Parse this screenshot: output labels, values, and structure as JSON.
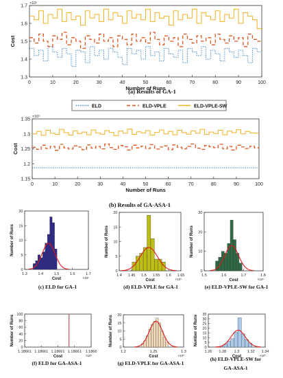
{
  "legend": {
    "entries": [
      {
        "name": "ELD",
        "color": "#1f78c8",
        "dash": "dot"
      },
      {
        "name": "ELD-VPLE",
        "color": "#e0541c",
        "dash": "dash"
      },
      {
        "name": "ELD-VPLE-SW",
        "color": "#f2b01e",
        "dash": "solid"
      }
    ]
  },
  "chart_data": [
    {
      "id": "a",
      "type": "line",
      "caption": "(a) Results of GA-1",
      "xlabel": "Number of Runs",
      "ylabel": "Cost",
      "exponent": "×10⁵",
      "xlim": [
        0,
        100
      ],
      "ylim": [
        1.3,
        1.7
      ],
      "xticks": [
        0,
        10,
        20,
        30,
        40,
        50,
        60,
        70,
        80,
        90,
        100
      ],
      "yticks": [
        1.3,
        1.4,
        1.5,
        1.6,
        1.7
      ],
      "ytick_labels": [
        "1.3",
        "1.4",
        "1.5",
        "1.6",
        "1.7"
      ],
      "x": [
        1,
        3,
        5,
        7,
        9,
        11,
        13,
        15,
        17,
        19,
        21,
        23,
        25,
        27,
        29,
        31,
        33,
        35,
        37,
        39,
        41,
        43,
        45,
        47,
        49,
        51,
        53,
        55,
        57,
        59,
        61,
        63,
        65,
        67,
        69,
        71,
        73,
        75,
        77,
        79,
        81,
        83,
        85,
        87,
        89,
        91,
        93,
        95,
        97,
        99
      ],
      "series": [
        {
          "name": "ELD",
          "values": [
            1.46,
            1.42,
            1.45,
            1.39,
            1.47,
            1.44,
            1.41,
            1.46,
            1.43,
            1.36,
            1.45,
            1.44,
            1.38,
            1.47,
            1.42,
            1.45,
            1.4,
            1.46,
            1.44,
            1.41,
            1.37,
            1.46,
            1.43,
            1.45,
            1.4,
            1.47,
            1.42,
            1.44,
            1.39,
            1.46,
            1.43,
            1.41,
            1.45,
            1.38,
            1.46,
            1.44,
            1.42,
            1.47,
            1.4,
            1.45,
            1.43,
            1.39,
            1.46,
            1.44,
            1.41,
            1.45,
            1.42,
            1.38,
            1.46,
            1.44
          ]
        },
        {
          "name": "ELD-VPLE",
          "values": [
            1.52,
            1.49,
            1.54,
            1.5,
            1.47,
            1.53,
            1.51,
            1.55,
            1.48,
            1.52,
            1.5,
            1.46,
            1.53,
            1.51,
            1.49,
            1.54,
            1.5,
            1.52,
            1.47,
            1.53,
            1.51,
            1.48,
            1.54,
            1.5,
            1.52,
            1.49,
            1.55,
            1.51,
            1.48,
            1.53,
            1.5,
            1.52,
            1.47,
            1.54,
            1.51,
            1.49,
            1.53,
            1.5,
            1.52,
            1.48,
            1.54,
            1.51,
            1.49,
            1.53,
            1.5,
            1.52,
            1.47,
            1.54,
            1.51,
            1.5
          ]
        },
        {
          "name": "ELD-VPLE-SW",
          "values": [
            1.64,
            1.62,
            1.67,
            1.6,
            1.65,
            1.63,
            1.68,
            1.61,
            1.66,
            1.62,
            1.64,
            1.59,
            1.67,
            1.63,
            1.65,
            1.61,
            1.68,
            1.62,
            1.66,
            1.64,
            1.6,
            1.67,
            1.63,
            1.65,
            1.62,
            1.68,
            1.61,
            1.66,
            1.63,
            1.64,
            1.59,
            1.67,
            1.62,
            1.65,
            1.63,
            1.68,
            1.6,
            1.66,
            1.64,
            1.62,
            1.67,
            1.61,
            1.65,
            1.63,
            1.68,
            1.6,
            1.66,
            1.64,
            1.62,
            1.57
          ]
        }
      ]
    },
    {
      "id": "b",
      "type": "line",
      "caption": "(b) Results of GA-ASA-1",
      "xlabel": "Number of Runs",
      "ylabel": "Cost",
      "exponent": "×10⁵",
      "xlim": [
        0,
        100
      ],
      "ylim": [
        1.15,
        1.35
      ],
      "xticks": [
        0,
        10,
        20,
        30,
        40,
        50,
        60,
        70,
        80,
        90,
        100
      ],
      "yticks": [
        1.15,
        1.2,
        1.25,
        1.3,
        1.35
      ],
      "ytick_labels": [
        "1.15",
        "1.2",
        "1.25",
        "1.3",
        "1.35"
      ],
      "x": [
        1,
        3,
        5,
        7,
        9,
        11,
        13,
        15,
        17,
        19,
        21,
        23,
        25,
        27,
        29,
        31,
        33,
        35,
        37,
        39,
        41,
        43,
        45,
        47,
        49,
        51,
        53,
        55,
        57,
        59,
        61,
        63,
        65,
        67,
        69,
        71,
        73,
        75,
        77,
        79,
        81,
        83,
        85,
        87,
        89,
        91,
        93,
        95,
        97,
        99
      ],
      "series": [
        {
          "name": "ELD",
          "values": [
            1.1866,
            1.1866,
            1.1866,
            1.1866,
            1.1866,
            1.1866,
            1.1866,
            1.1866,
            1.1866,
            1.1866,
            1.1866,
            1.1866,
            1.1866,
            1.1866,
            1.1866,
            1.1866,
            1.1866,
            1.1866,
            1.1866,
            1.1866,
            1.1866,
            1.1866,
            1.1866,
            1.1866,
            1.1866,
            1.1866,
            1.1866,
            1.1866,
            1.1866,
            1.1866,
            1.1866,
            1.1866,
            1.1866,
            1.1866,
            1.1866,
            1.1866,
            1.1866,
            1.1866,
            1.1866,
            1.1866,
            1.1866,
            1.1866,
            1.1866,
            1.1866,
            1.1866,
            1.1866,
            1.1866,
            1.1866,
            1.1866,
            1.1866
          ]
        },
        {
          "name": "ELD-VPLE",
          "values": [
            1.255,
            1.248,
            1.262,
            1.251,
            1.258,
            1.245,
            1.265,
            1.253,
            1.249,
            1.26,
            1.256,
            1.247,
            1.263,
            1.252,
            1.258,
            1.25,
            1.266,
            1.254,
            1.248,
            1.261,
            1.257,
            1.246,
            1.262,
            1.253,
            1.259,
            1.251,
            1.264,
            1.249,
            1.256,
            1.26,
            1.247,
            1.263,
            1.255,
            1.25,
            1.258,
            1.266,
            1.252,
            1.248,
            1.261,
            1.257,
            1.254,
            1.265,
            1.25,
            1.258,
            1.246,
            1.262,
            1.256,
            1.251,
            1.259,
            1.253
          ]
        },
        {
          "name": "ELD-VPLE-SW",
          "values": [
            1.3,
            1.308,
            1.295,
            1.312,
            1.302,
            1.298,
            1.315,
            1.304,
            1.296,
            1.31,
            1.301,
            1.306,
            1.297,
            1.313,
            1.303,
            1.299,
            1.311,
            1.305,
            1.294,
            1.309,
            1.302,
            1.316,
            1.298,
            1.307,
            1.303,
            1.311,
            1.296,
            1.305,
            1.313,
            1.3,
            1.308,
            1.297,
            1.312,
            1.304,
            1.299,
            1.31,
            1.302,
            1.315,
            1.298,
            1.306,
            1.301,
            1.312,
            1.297,
            1.309,
            1.304,
            1.314,
            1.3,
            1.308,
            1.303,
            1.302
          ]
        }
      ]
    },
    {
      "id": "c",
      "type": "histogram",
      "caption": "(c) ELD for GA-1",
      "xlabel": "Cost",
      "ylabel": "Number of Runs",
      "exponent": "×10⁵",
      "bar_color": "#2e2a8a",
      "xlim": [
        1.3,
        1.7
      ],
      "ylim": [
        0,
        20
      ],
      "xticks": [
        1.3,
        1.4,
        1.5,
        1.6,
        1.7
      ],
      "xtick_labels": [
        "1.3",
        "1.4",
        "1.5",
        "1.6",
        "1.7"
      ],
      "yticks": [
        0,
        5,
        10,
        15,
        20
      ],
      "bins": [
        1.36,
        1.375,
        1.39,
        1.405,
        1.42,
        1.435,
        1.45,
        1.465,
        1.48,
        1.495
      ],
      "counts": [
        2,
        3,
        5,
        4,
        6,
        9,
        12,
        18,
        16,
        7
      ],
      "fit": {
        "mean": 1.45,
        "std": 0.04,
        "peak": 9
      }
    },
    {
      "id": "d",
      "type": "histogram",
      "caption": "(d) ELD-VPLE for GA-1",
      "xlabel": "Cost",
      "ylabel": "Number of Runs",
      "exponent": "×10⁵",
      "bar_color": "#bcbc14",
      "xlim": [
        1.4,
        1.65
      ],
      "ylim": [
        0,
        20
      ],
      "xticks": [
        1.4,
        1.45,
        1.5,
        1.55,
        1.6,
        1.65
      ],
      "xtick_labels": [
        "1.4",
        "1.45",
        "1.5",
        "1.55",
        "1.6",
        "1.65"
      ],
      "yticks": [
        0,
        5,
        10,
        15,
        20
      ],
      "bins": [
        1.46,
        1.475,
        1.49,
        1.505,
        1.52,
        1.535,
        1.55,
        1.565,
        1.58
      ],
      "counts": [
        3,
        5,
        6,
        8,
        19,
        11,
        4,
        4,
        3
      ],
      "fit": {
        "mean": 1.52,
        "std": 0.035,
        "peak": 8
      }
    },
    {
      "id": "e",
      "type": "histogram",
      "caption": "(e) ELD-VPLE-SW for GA-1",
      "xlabel": "Cost",
      "ylabel": "Number of Runs",
      "exponent": "×10⁵",
      "bar_color": "#2f6a45",
      "xlim": [
        1.5,
        1.8
      ],
      "ylim": [
        0,
        30
      ],
      "xticks": [
        1.5,
        1.6,
        1.7,
        1.8
      ],
      "xtick_labels": [
        "1.5",
        "1.6",
        "1.7",
        "1.8"
      ],
      "yticks": [
        0,
        10,
        20,
        30
      ],
      "bins": [
        1.565,
        1.58,
        1.595,
        1.61,
        1.625,
        1.64,
        1.655,
        1.67,
        1.685
      ],
      "counts": [
        5,
        7,
        10,
        9,
        14,
        26,
        16,
        9,
        4
      ],
      "fit": {
        "mean": 1.64,
        "std": 0.035,
        "peak": 13
      }
    },
    {
      "id": "f",
      "type": "histogram",
      "caption": "(f) ELD for GA-ASA-1",
      "xlabel": "Cost",
      "ylabel": "Number of Runs",
      "exponent": "×10⁵",
      "bar_color": "#e05030",
      "xlim": [
        0,
        1
      ],
      "ylim": [
        0,
        100
      ],
      "xticks": [
        0,
        0.25,
        0.5,
        0.75,
        1
      ],
      "xtick_labels": [
        "1.18661",
        "1.18661",
        "1.18661",
        "1.18661",
        "1.1866"
      ],
      "yticks": [
        0,
        20,
        40,
        60,
        80,
        100
      ],
      "spike": {
        "at": 0.665,
        "count": 100
      }
    },
    {
      "id": "g",
      "type": "histogram",
      "caption": "(g) ELD-VPLE for GA-ASA-1",
      "xlabel": "Cost",
      "ylabel": "Number of Runs",
      "exponent": "×10⁵",
      "bar_color": "#f6dcb8",
      "xlim": [
        1.2,
        1.3
      ],
      "ylim": [
        0,
        20
      ],
      "xticks": [
        1.2,
        1.25,
        1.3
      ],
      "xtick_labels": [
        "1.2",
        "1.25",
        "1.3"
      ],
      "yticks": [
        0,
        5,
        10,
        15,
        20
      ],
      "bins": [
        1.232,
        1.236,
        1.24,
        1.244,
        1.248,
        1.252,
        1.256,
        1.26,
        1.264,
        1.268,
        1.272
      ],
      "counts": [
        2,
        4,
        7,
        11,
        14,
        16,
        18,
        15,
        10,
        6,
        3
      ],
      "fit": {
        "mean": 1.254,
        "std": 0.011,
        "peak": 16
      }
    },
    {
      "id": "h",
      "type": "histogram",
      "caption": "(h) ELD-VPLE-SW for GA-ASA-1",
      "xlabel": "Cost",
      "ylabel": "Number of Runs",
      "exponent": "×10⁵",
      "bar_color": "#a9c8ea",
      "xlim": [
        1.26,
        1.34
      ],
      "ylim": [
        0,
        35
      ],
      "xticks": [
        1.26,
        1.28,
        1.3,
        1.32,
        1.34
      ],
      "xtick_labels": [
        "1.26",
        "1.28",
        "1.3",
        "1.32",
        "1.34"
      ],
      "yticks": [
        0,
        5,
        10,
        15,
        20,
        25,
        30,
        35
      ],
      "bins": [
        1.284,
        1.289,
        1.294,
        1.299,
        1.304,
        1.309,
        1.314,
        1.319
      ],
      "counts": [
        3,
        6,
        9,
        16,
        31,
        14,
        8,
        4
      ],
      "fit": {
        "mean": 1.302,
        "std": 0.01,
        "peak": 18
      }
    }
  ]
}
